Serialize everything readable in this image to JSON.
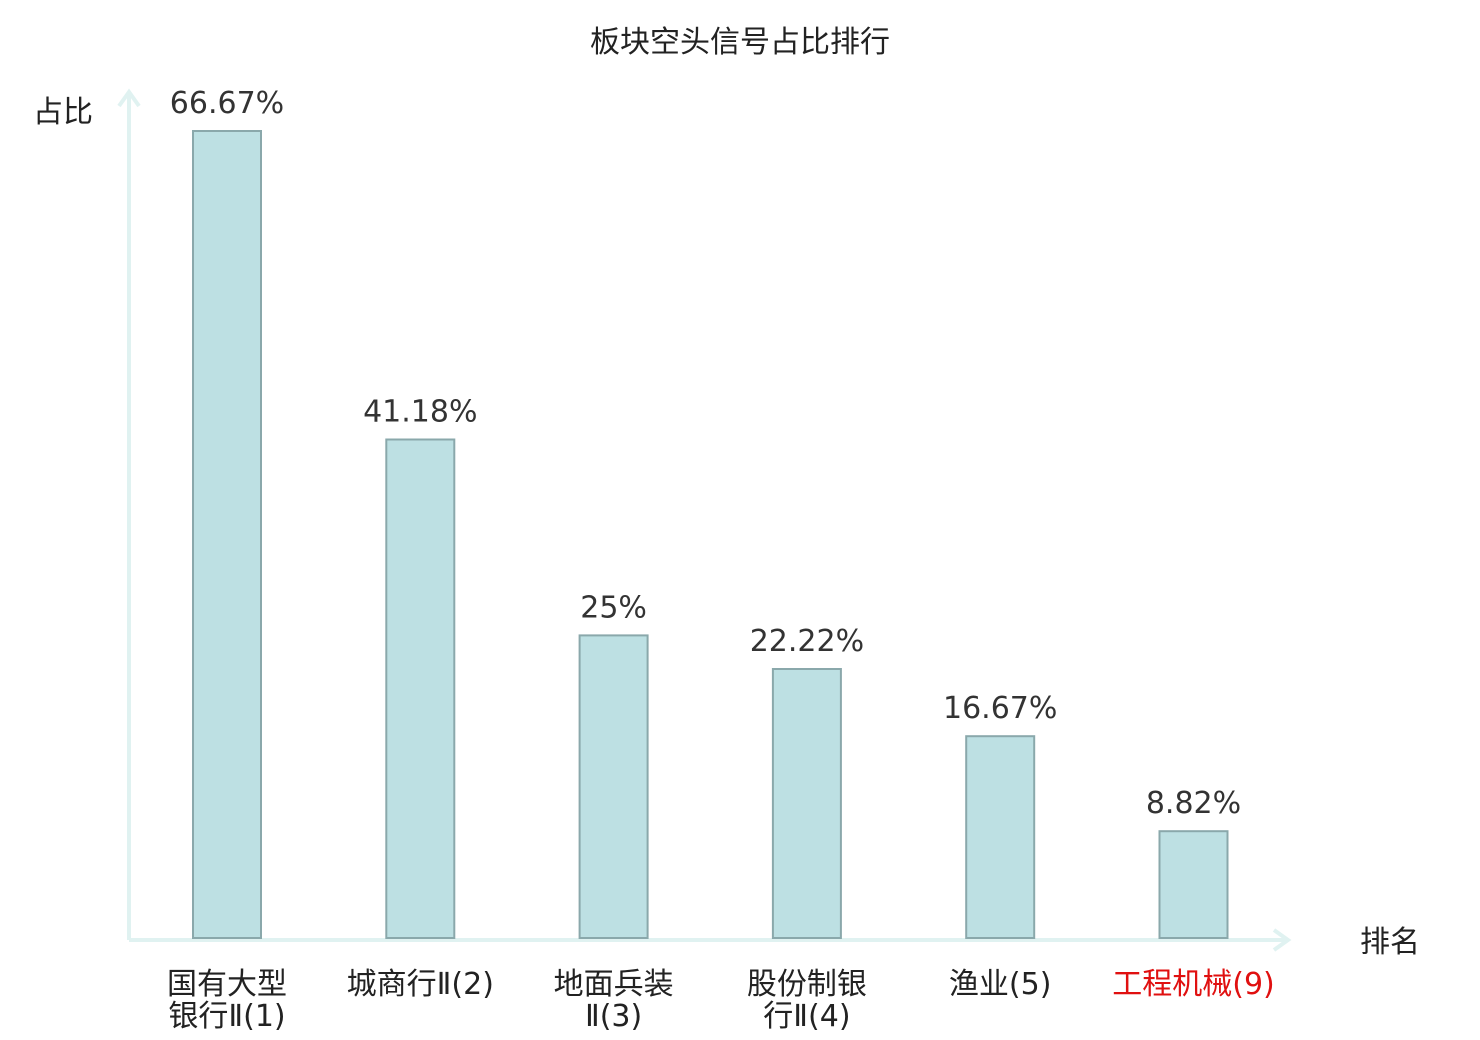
{
  "chart_data": {
    "type": "bar",
    "title": "板块空头信号占比排行",
    "ylabel": "占比",
    "xlabel": "排名",
    "categories": [
      [
        "国有大型",
        "银行Ⅱ(1)"
      ],
      [
        "城商行Ⅱ(2)"
      ],
      [
        "地面兵装",
        "Ⅱ(3)"
      ],
      [
        "股份制银",
        "行Ⅱ(4)"
      ],
      [
        "渔业(5)"
      ],
      [
        "工程机械(9)"
      ]
    ],
    "values": [
      66.67,
      41.18,
      25,
      22.22,
      16.67,
      8.82
    ],
    "value_labels": [
      "66.67%",
      "41.18%",
      "25%",
      "22.22%",
      "16.67%",
      "8.82%"
    ],
    "ylim": [
      0,
      66.67
    ],
    "grid": false,
    "legend": "none",
    "colors": {
      "bar_fill": "#bde0e3",
      "bar_stroke": "#8aa8ab",
      "axis": "#e0f2f1",
      "text": "#222222",
      "highlight": "#e01010"
    },
    "highlight_index": 5
  }
}
